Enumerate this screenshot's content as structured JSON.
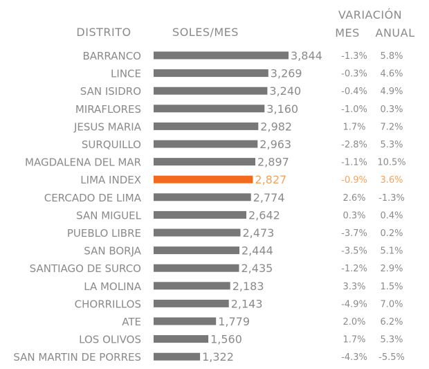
{
  "chart_data": {
    "type": "bar",
    "orientation": "horizontal",
    "headers": {
      "category": "DISTRITO",
      "value": "SOLES/MES",
      "variation": "VARIACIÓN",
      "monthly": "MES",
      "annual": "ANUAL"
    },
    "categories": [
      "BARRANCO",
      "LINCE",
      "SAN ISIDRO",
      "MIRAFLORES",
      "JESUS MARIA",
      "SURQUILLO",
      "MAGDALENA DEL MAR",
      "LIMA INDEX",
      "CERCADO DE LIMA",
      "SAN MIGUEL",
      "PUEBLO LIBRE",
      "SAN BORJA",
      "SANTIAGO DE SURCO",
      "LA MOLINA",
      "CHORRILLOS",
      "ATE",
      "LOS OLIVOS",
      "SAN MARTIN DE PORRES"
    ],
    "values": [
      3844,
      3269,
      3240,
      3160,
      2982,
      2963,
      2897,
      2827,
      2774,
      2642,
      2473,
      2444,
      2435,
      2183,
      2143,
      1779,
      1560,
      1322
    ],
    "value_labels": [
      "3,844",
      "3,269",
      "3,240",
      "3,160",
      "2,982",
      "2,963",
      "2,897",
      "2,827",
      "2,774",
      "2,642",
      "2,473",
      "2,444",
      "2,435",
      "2,183",
      "2,143",
      "1,779",
      "1,560",
      "1,322"
    ],
    "monthly_change": [
      "-1.3%",
      "-0.3%",
      "-0.4%",
      "-1.0%",
      "1.7%",
      "-2.8%",
      "-1.1%",
      "-0.9%",
      "2.6%",
      "0.3%",
      "-3.7%",
      "-3.5%",
      "-1.2%",
      "3.3%",
      "-4.9%",
      "2.0%",
      "1.7%",
      "-4.3%"
    ],
    "annual_change": [
      "5.8%",
      "4.6%",
      "4.9%",
      "0.3%",
      "7.2%",
      "5.3%",
      "10.5%",
      "3.6%",
      "-1.3%",
      "0.4%",
      "0.2%",
      "5.1%",
      "2.9%",
      "1.5%",
      "7.0%",
      "6.2%",
      "5.3%",
      "-5.5%"
    ],
    "highlight_index": 7,
    "colors": {
      "bar": "#777777",
      "highlight_bar": "#f26a1b",
      "text": "#8a8a8a",
      "highlight_text": "#f5a25d"
    },
    "grid": false
  }
}
